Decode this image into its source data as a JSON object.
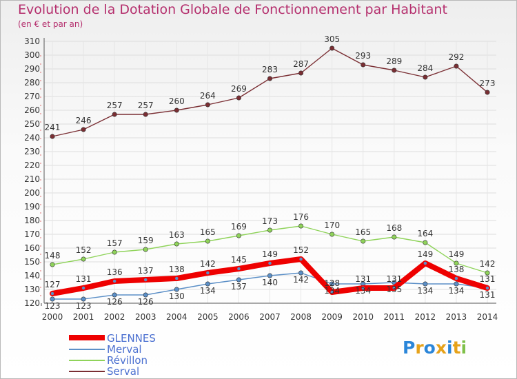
{
  "title": "Evolution de la Dotation Globale de Fonctionnement par Habitant",
  "subtitle": "(en € et par an)",
  "logo": "Proxiti",
  "chart_data": {
    "type": "line",
    "title": "Evolution de la Dotation Globale de Fonctionnement par Habitant",
    "ylabel": "(en € et par an)",
    "x": [
      "2000",
      "2001",
      "2002",
      "2003",
      "2004",
      "2005",
      "2006",
      "2007",
      "2008",
      "2009",
      "2010",
      "2011",
      "2012",
      "2013",
      "2014"
    ],
    "ylim": [
      120,
      310
    ],
    "yticks": [
      120,
      130,
      140,
      150,
      160,
      170,
      180,
      190,
      200,
      210,
      220,
      230,
      240,
      250,
      260,
      270,
      280,
      290,
      300,
      310
    ],
    "series": [
      {
        "name": "GLENNES",
        "color": "#ee0000",
        "values": [
          127,
          131,
          136,
          137,
          138,
          142,
          145,
          149,
          152,
          128,
          131,
          131,
          149,
          138,
          131
        ]
      },
      {
        "name": "Merval",
        "color": "#5b8fc7",
        "values": [
          123,
          123,
          126,
          126,
          130,
          134,
          137,
          140,
          142,
          134,
          134,
          135,
          134,
          134,
          131
        ]
      },
      {
        "name": "Révillon",
        "color": "#8fd35a",
        "values": [
          148,
          152,
          157,
          159,
          163,
          165,
          169,
          173,
          176,
          170,
          165,
          168,
          164,
          149,
          142
        ]
      },
      {
        "name": "Serval",
        "color": "#7a2e33",
        "values": [
          241,
          246,
          257,
          257,
          260,
          264,
          269,
          283,
          287,
          305,
          293,
          289,
          284,
          292,
          273
        ]
      }
    ]
  }
}
